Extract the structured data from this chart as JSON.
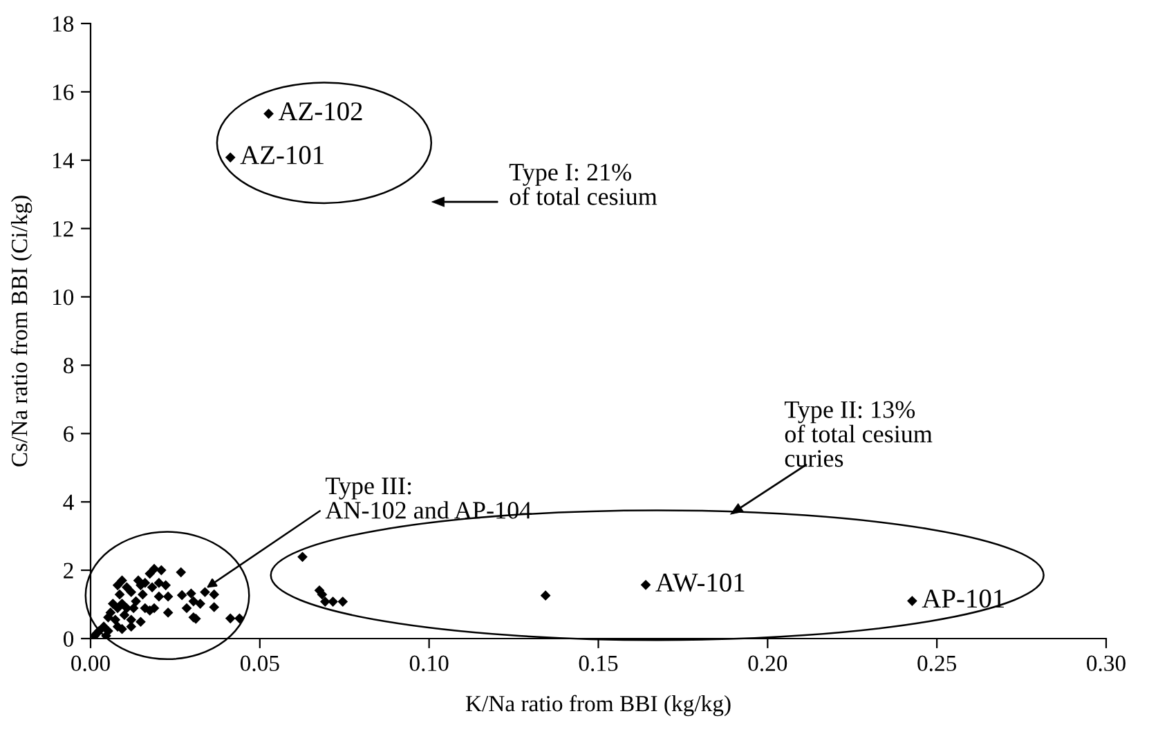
{
  "chart_data": {
    "type": "scatter",
    "xlabel": "K/Na ratio from BBI (kg/kg)",
    "ylabel": "Cs/Na ratio from BBI (Ci/kg)",
    "xlim": [
      0,
      0.3
    ],
    "ylim": [
      0,
      18
    ],
    "xticks": [
      {
        "value": 0,
        "label": "0.00"
      },
      {
        "value": 0.05,
        "label": "0.05"
      },
      {
        "value": 0.1,
        "label": "0.10"
      },
      {
        "value": 0.15,
        "label": "0.15"
      },
      {
        "value": 0.2,
        "label": "0.20"
      },
      {
        "value": 0.25,
        "label": "0.25"
      },
      {
        "value": 0.3,
        "label": "0.30"
      }
    ],
    "yticks": [
      0,
      2,
      4,
      6,
      8,
      10,
      12,
      14,
      16,
      18
    ],
    "grid": false,
    "legend": false,
    "marker": "diamond",
    "series": [
      {
        "color": "#000000",
        "x": [
          0.0526,
          0.0413,
          0.0626,
          0.0676,
          0.0684,
          0.0693,
          0.0716,
          0.0745,
          0.1344,
          0.164,
          0.2427,
          0.0267,
          0.0188,
          0.0209,
          0.0175,
          0.0141,
          0.0148,
          0.0161,
          0.0182,
          0.0202,
          0.0222,
          0.0202,
          0.0229,
          0.027,
          0.0297,
          0.0338,
          0.0365,
          0.0304,
          0.0284,
          0.0324,
          0.0365,
          0.0304,
          0.0311,
          0.0413,
          0.044,
          0.0093,
          0.008,
          0.0107,
          0.0086,
          0.012,
          0.0134,
          0.0161,
          0.0175,
          0.0107,
          0.008,
          0.0093,
          0.0066,
          0.0059,
          0.0052,
          0.0073,
          0.01,
          0.012,
          0.0148,
          0.008,
          0.0039,
          0.0025,
          0.0018,
          0.0052,
          0.0093,
          0.012,
          0.0012,
          0.0046,
          0.0154,
          0.0127,
          0.0188,
          0.0229
        ],
        "values": [
          15.36,
          14.08,
          2.39,
          1.41,
          1.29,
          1.08,
          1.08,
          1.08,
          1.26,
          1.57,
          1.1,
          1.94,
          2.04,
          2.0,
          1.9,
          1.7,
          1.56,
          1.63,
          1.5,
          1.63,
          1.56,
          1.23,
          1.23,
          1.27,
          1.32,
          1.36,
          1.29,
          1.09,
          0.89,
          1.02,
          0.92,
          0.62,
          0.58,
          0.59,
          0.59,
          1.7,
          1.56,
          1.5,
          1.29,
          1.36,
          1.09,
          0.89,
          0.82,
          0.89,
          0.89,
          1.02,
          1.02,
          0.76,
          0.62,
          0.55,
          0.69,
          0.55,
          0.49,
          0.35,
          0.35,
          0.22,
          0.15,
          0.22,
          0.28,
          0.35,
          0.08,
          0.08,
          1.29,
          0.89,
          0.89,
          0.76
        ]
      }
    ],
    "annotations": [
      {
        "text": "AZ-102",
        "x": 0.0526,
        "y": 15.36
      },
      {
        "text": "AZ-101",
        "x": 0.0413,
        "y": 14.08
      },
      {
        "text": "AW-101",
        "x": 0.164,
        "y": 1.57
      },
      {
        "text": "AP-101",
        "x": 0.2427,
        "y": 1.1
      },
      "Type I: 21%\nof total cesium",
      "Type II: 13%\nof total cesium\ncuries",
      {
        "text": "Type III:\nAN-102 and AP-104",
        "x": 0.0333,
        "y": 1.42
      }
    ]
  }
}
